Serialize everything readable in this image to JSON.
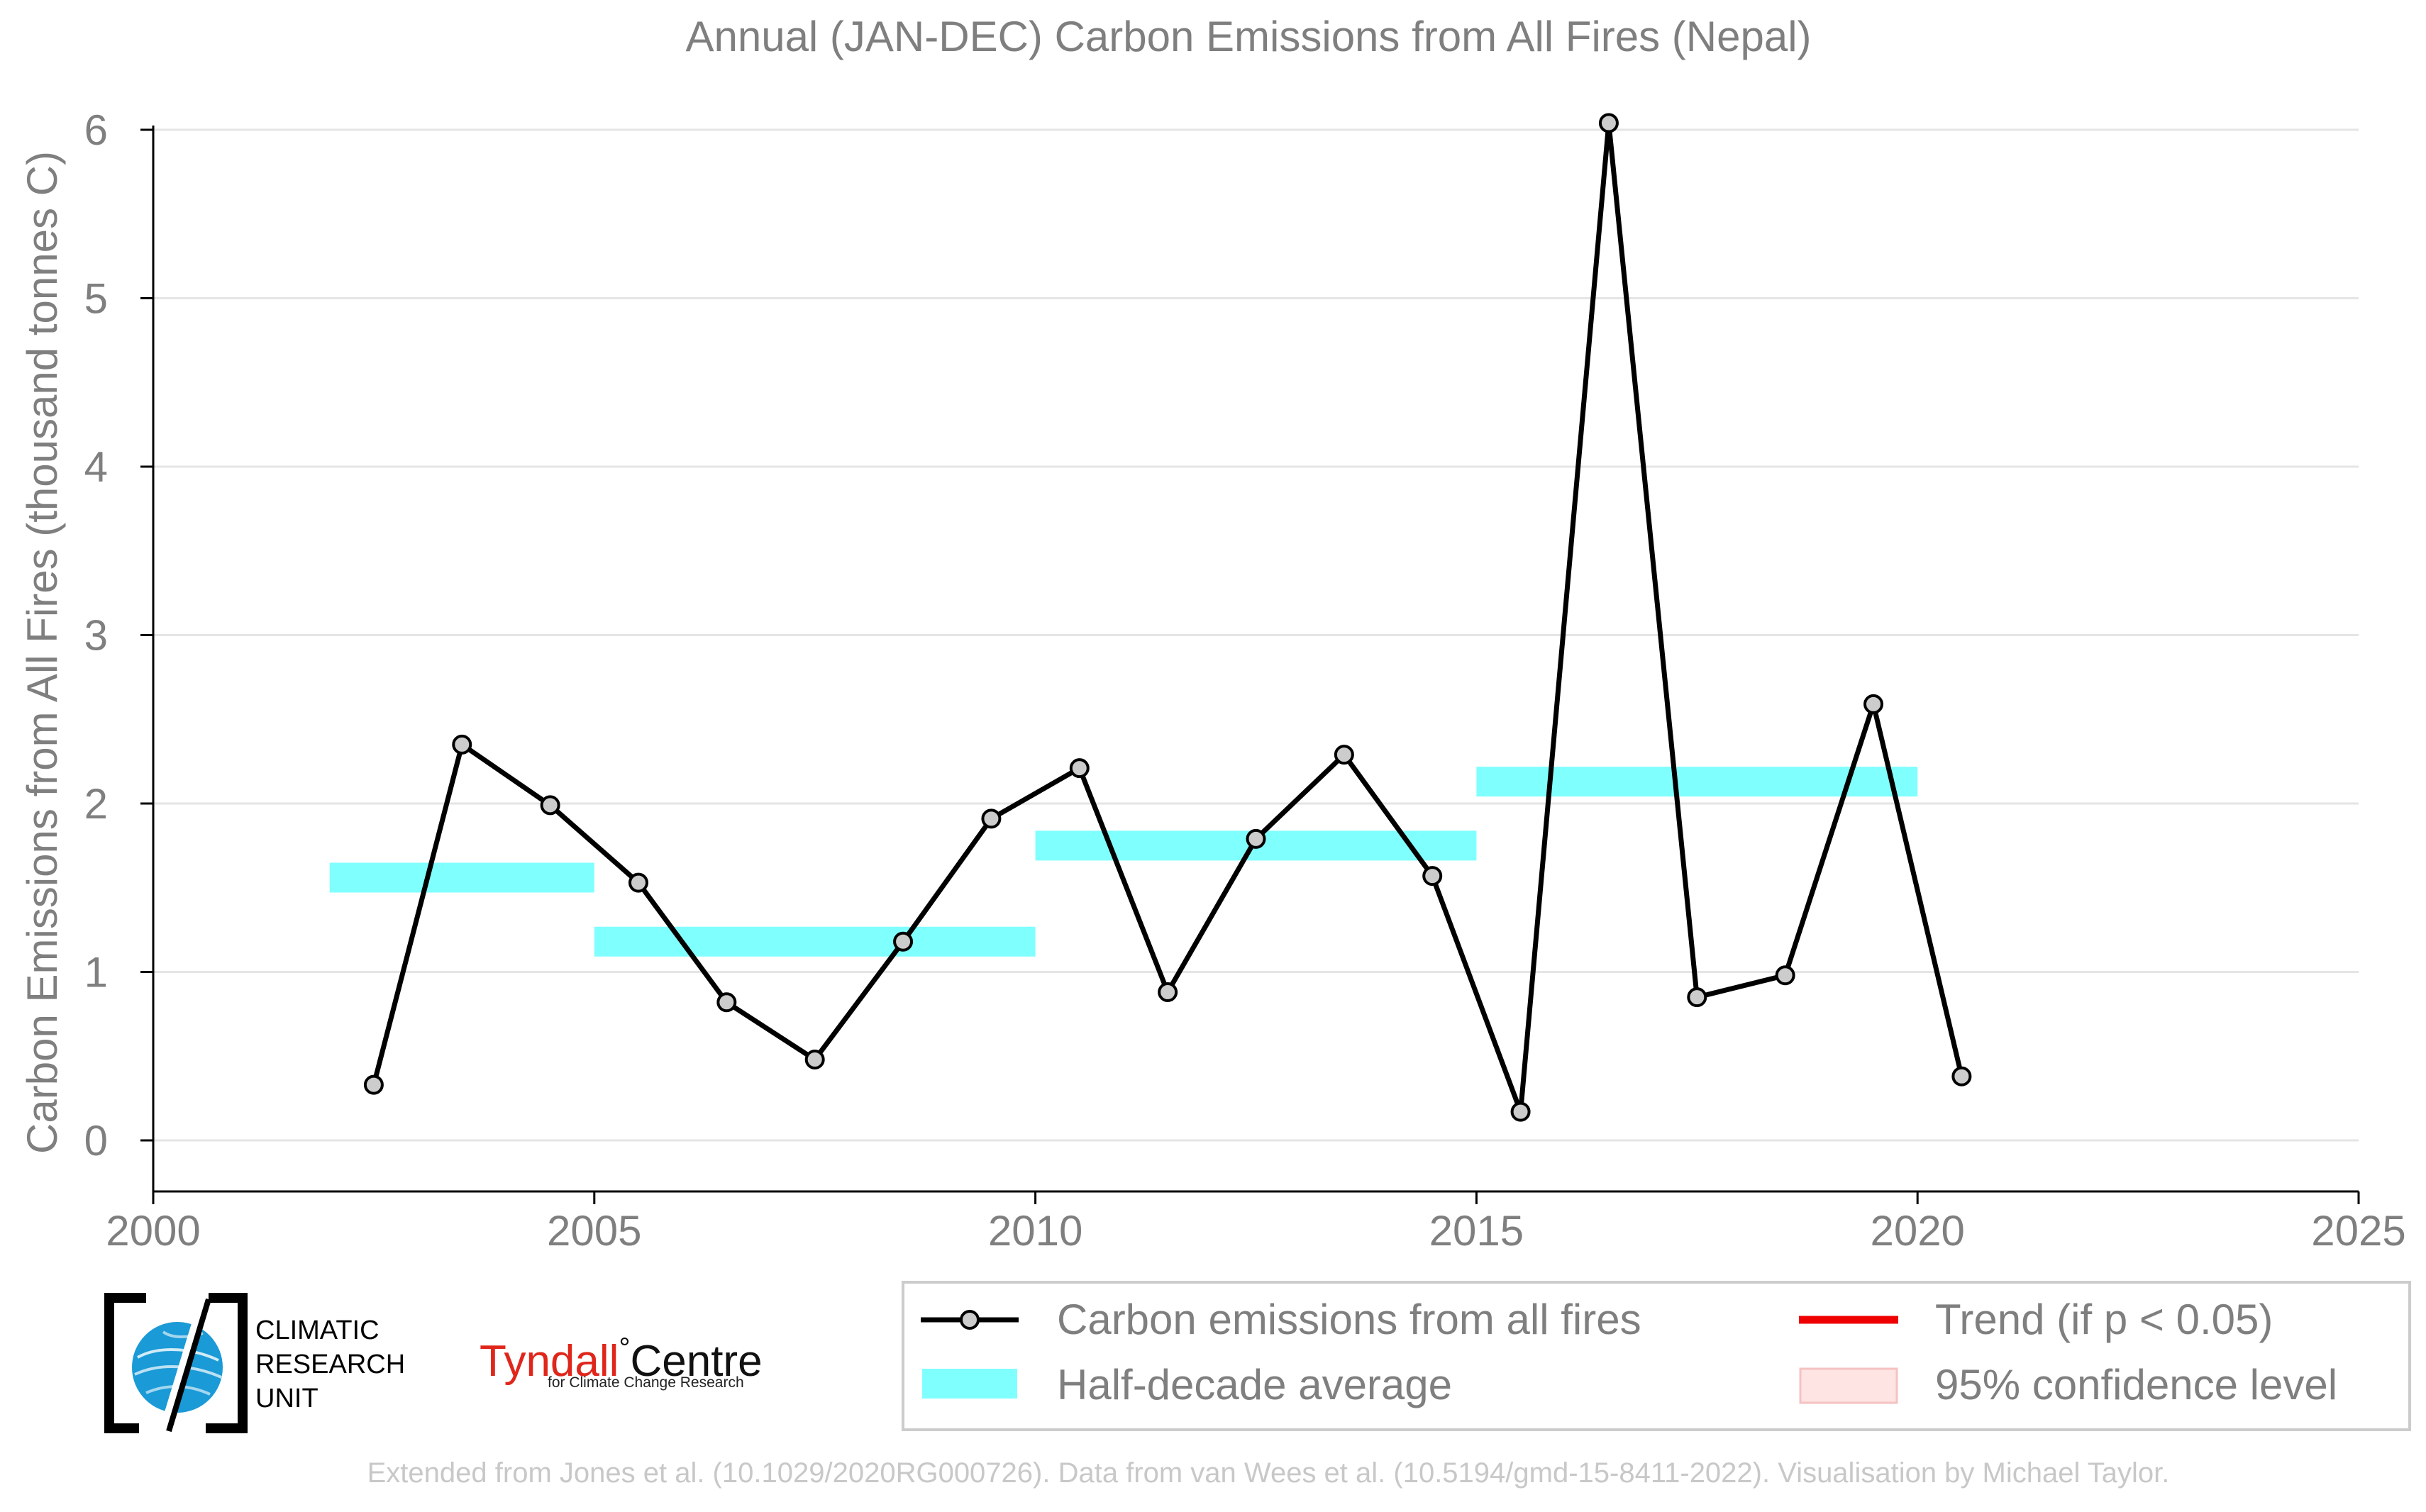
{
  "chart_data": {
    "type": "line",
    "title": "Annual (JAN-DEC) Carbon Emissions from All Fires (Nepal)",
    "xlabel": "",
    "ylabel": "Carbon Emissions from All Fires (thousand tonnes C)",
    "xlim": [
      2000,
      2025
    ],
    "ylim": [
      0,
      6.2
    ],
    "xticks": [
      "2000",
      "2005",
      "2010",
      "2015",
      "2020",
      "2025"
    ],
    "yticks": [
      "0",
      "1",
      "2",
      "3",
      "4",
      "5",
      "6"
    ],
    "grid": "horizontal",
    "legend_position": "bottom-right",
    "series": [
      {
        "name": "Carbon emissions from all fires",
        "color": "#000000",
        "marker_color": "#cccccc",
        "x": [
          2002.5,
          2003.5,
          2004.5,
          2005.5,
          2006.5,
          2007.5,
          2008.5,
          2009.5,
          2010.5,
          2011.5,
          2012.5,
          2013.5,
          2014.5,
          2015.5,
          2016.5,
          2017.5,
          2018.5,
          2019.5,
          2020.5
        ],
        "values": [
          0.33,
          2.35,
          1.99,
          1.53,
          0.82,
          0.48,
          1.18,
          1.91,
          2.21,
          0.88,
          1.79,
          2.29,
          1.57,
          0.17,
          6.04,
          0.85,
          0.98,
          2.59,
          0.38
        ]
      }
    ],
    "half_decade_average": {
      "name": "Half-decade average",
      "color": "#80ffff",
      "segments": [
        {
          "x_start": 2002,
          "x_end": 2005,
          "value": 1.56
        },
        {
          "x_start": 2005,
          "x_end": 2010,
          "value": 1.18
        },
        {
          "x_start": 2010,
          "x_end": 2015,
          "value": 1.75
        },
        {
          "x_start": 2015,
          "x_end": 2020,
          "value": 2.13
        }
      ]
    },
    "legend": [
      {
        "label": "Carbon emissions from all fires",
        "kind": "line-marker",
        "color": "#000000"
      },
      {
        "label": "Trend (if p < 0.05)",
        "kind": "line",
        "color": "#ee0000"
      },
      {
        "label": "Half-decade average",
        "kind": "band",
        "color": "#80ffff"
      },
      {
        "label": "95% confidence level",
        "kind": "patch",
        "color": "#ffe4e4"
      }
    ],
    "footer": "Extended from Jones et al. (10.1029/2020RG000726). Data from van Wees et al. (10.5194/gmd-15-8411-2022). Visualisation by Michael Taylor."
  },
  "logos": {
    "cru_lines": [
      "CLIMATIC",
      "RESEARCH",
      "UNIT"
    ],
    "tyndall_part1": "Tyndall",
    "tyndall_degree": "°",
    "tyndall_part2": "Centre",
    "tyndall_sub": "for Climate Change Research"
  },
  "colors": {
    "text_gray": "#7f7f7f",
    "footer_gray": "#c8c8c8",
    "grid": "#e5e5e5",
    "cru_blue": "#1a9ad6"
  }
}
